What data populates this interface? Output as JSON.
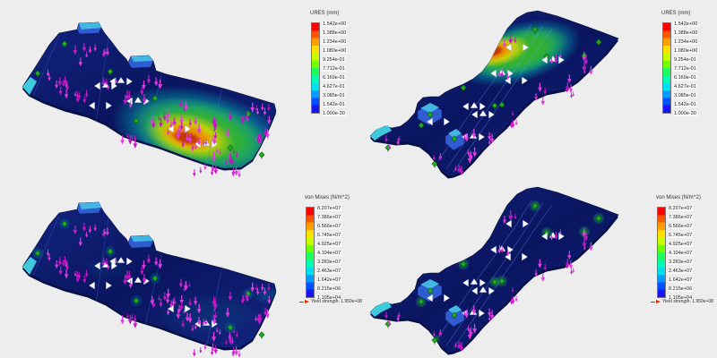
{
  "background_color": "#ededed",
  "legends": {
    "displacement": {
      "title": "URES (mm)",
      "labels": [
        "1.542e+00",
        "1.388e+00",
        "1.234e+00",
        "1.080e+00",
        "9.254e-01",
        "7.712e-01",
        "6.169e-01",
        "4.627e-01",
        "3.085e-01",
        "1.542e-01",
        "1.000e-30"
      ]
    },
    "stress": {
      "title": "von Mises (N/m^2)",
      "labels": [
        "8.207e+07",
        "7.386e+07",
        "6.566e+07",
        "5.745e+07",
        "4.925e+07",
        "4.104e+07",
        "3.283e+07",
        "2.463e+07",
        "1.642e+07",
        "8.215e+06",
        "1.105e+04"
      ],
      "yield_text": "Yield strength: 1.950e+08"
    }
  },
  "panels": [
    {
      "id": "top-left",
      "plot": "displacement"
    },
    {
      "id": "top-right",
      "plot": "displacement"
    },
    {
      "id": "bottom-left",
      "plot": "stress"
    },
    {
      "id": "bottom-right",
      "plot": "stress"
    }
  ],
  "colors": {
    "colorbar": [
      "#ff0000",
      "#ff5400",
      "#ff9e00",
      "#ffe100",
      "#c8ff00",
      "#72ff00",
      "#1fff59",
      "#00ffb2",
      "#00e1f0",
      "#009cff",
      "#0050ff",
      "#1a14f0"
    ],
    "deck_base_dark": "#0a1560",
    "deck_base_light": "#12257f",
    "load_symbol": "#c617c6",
    "load_symbol_alt": "#e03ae0",
    "fixture_symbol": "#1fae1f",
    "reaction_symbol": "#ffffff",
    "yield_marker": "#e02800",
    "tab_face": "#2f5cd0",
    "tab_top": "#43b7e3",
    "cyan_tip": "#3ec9dd"
  },
  "icons": {
    "load_arrow": "downward magenta force arrow",
    "fixture": "green fixture clamp glyph",
    "reaction": "white triangular reaction arrow",
    "yield_marker": "red right-pointing yield arrow"
  }
}
